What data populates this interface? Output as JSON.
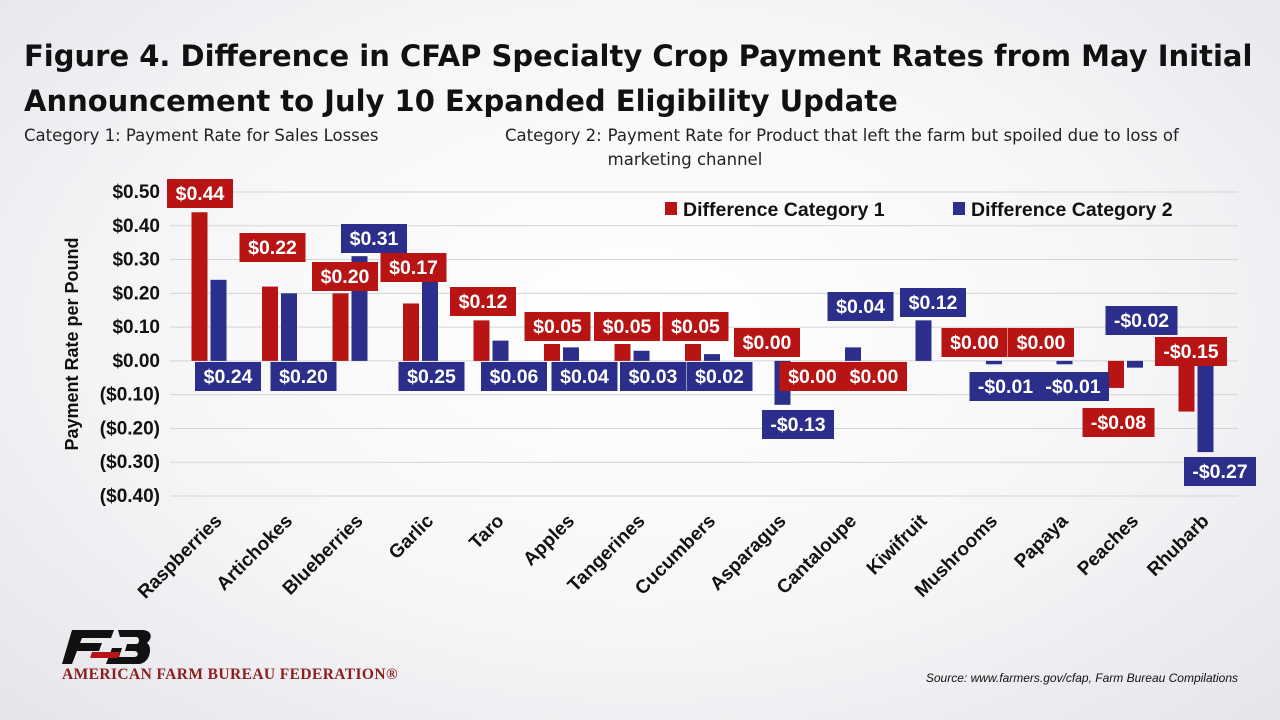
{
  "title": "Figure 4. Difference in CFAP Specialty Crop Payment Rates from May Initial Announcement to July 10 Expanded Eligibility Update",
  "category_notes": {
    "cat1_label": "Category 1:",
    "cat1_text": "Payment Rate for Sales Losses",
    "cat2_label": "Category 2:",
    "cat2_text": "Payment Rate for Product that left the farm but spoiled due to loss of marketing channel"
  },
  "colors": {
    "series1": "#b91414",
    "series2": "#2b2e8a"
  },
  "chart_data": {
    "type": "bar",
    "ylabel": "Payment Rate per Pound",
    "ylim": [
      -0.4,
      0.5
    ],
    "yticks": [
      0.5,
      0.4,
      0.3,
      0.2,
      0.1,
      0.0,
      -0.1,
      -0.2,
      -0.3,
      -0.4
    ],
    "ytick_labels": [
      "$0.50",
      "$0.40",
      "$0.30",
      "$0.20",
      "$0.10",
      "$0.00",
      "($0.10)",
      "($0.20)",
      "($0.30)",
      "($0.40)"
    ],
    "grid": true,
    "legend_position": "top-right",
    "categories": [
      "Raspberries",
      "Artichokes",
      "Blueberries",
      "Garlic",
      "Taro",
      "Apples",
      "Tangerines",
      "Cucumbers",
      "Asparagus",
      "Cantaloupe",
      "Kiwifruit",
      "Mushrooms",
      "Papaya",
      "Peaches",
      "Rhubarb"
    ],
    "series": [
      {
        "name": "Difference Category 1",
        "values": [
          0.44,
          0.22,
          0.2,
          0.17,
          0.12,
          0.05,
          0.05,
          0.05,
          0.0,
          0.0,
          0.0,
          0.0,
          0.0,
          -0.08,
          -0.15
        ],
        "labels": [
          "$0.44",
          "$0.22",
          "$0.20",
          "$0.17",
          "$0.12",
          "$0.05",
          "$0.05",
          "$0.05",
          "$0.00",
          "$0.00",
          "$0.00",
          "$0.00",
          "$0.00",
          "-$0.08",
          "-$0.15"
        ]
      },
      {
        "name": "Difference Category 2",
        "values": [
          0.24,
          0.2,
          0.31,
          0.25,
          0.06,
          0.04,
          0.03,
          0.02,
          -0.13,
          0.04,
          0.12,
          -0.01,
          -0.01,
          -0.02,
          -0.27
        ],
        "labels": [
          "$0.24",
          "$0.20",
          "$0.31",
          "$0.25",
          "$0.06",
          "$0.04",
          "$0.03",
          "$0.02",
          "-$0.13",
          "$0.04",
          "$0.12",
          "-$0.01",
          "-$0.01",
          "-$0.02",
          "-$0.27"
        ]
      }
    ]
  },
  "logo": {
    "name": "AMERICAN FARM BUREAU FEDERATION®"
  },
  "source": "Source: www.farmers.gov/cfap, Farm Bureau Compilations"
}
